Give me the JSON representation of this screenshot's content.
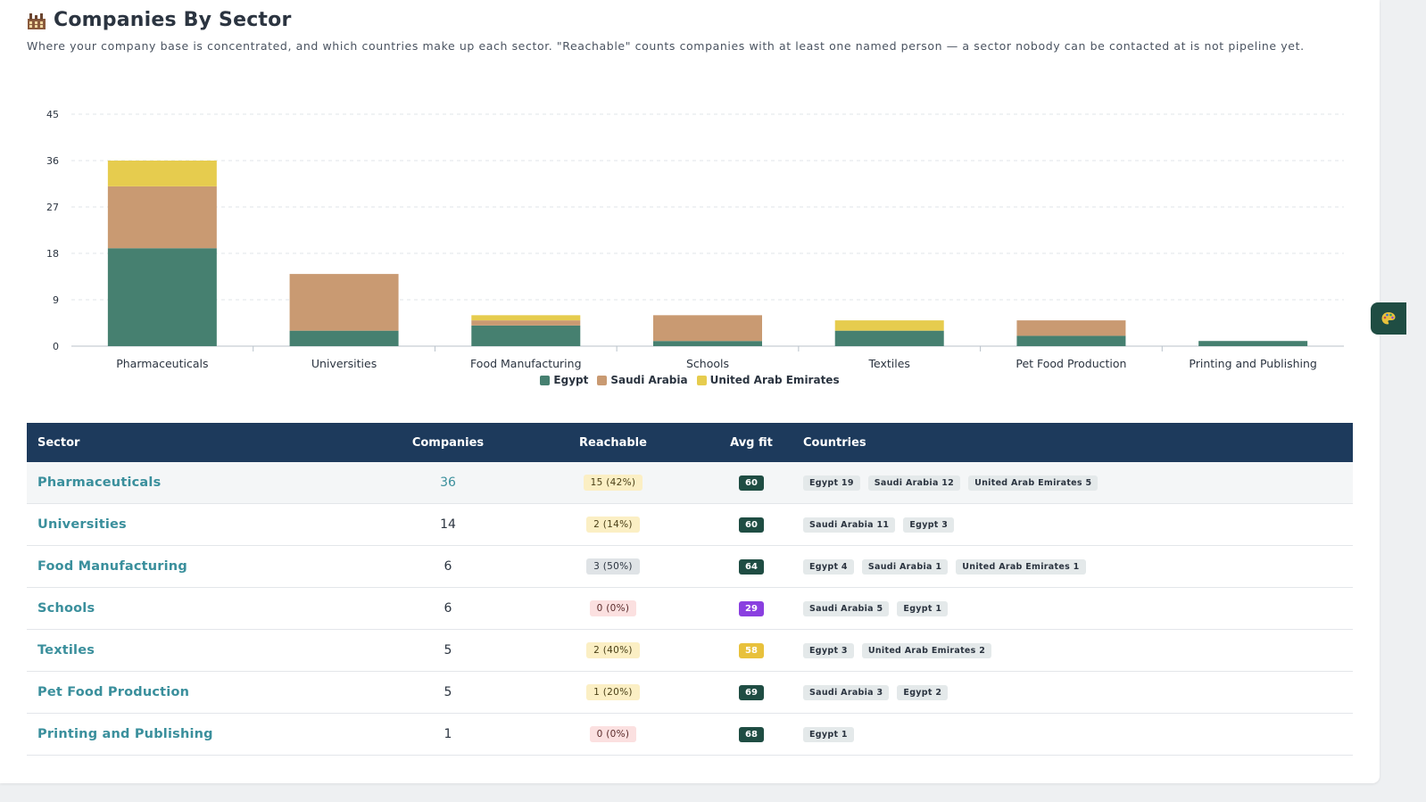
{
  "header": {
    "title": "Companies By Sector",
    "subtitle": "Where your company base is concentrated, and which countries make up each sector. \"Reachable\" counts companies with at least one named person — a sector nobody can be contacted at is not pipeline yet."
  },
  "colors": {
    "egypt": "#468070",
    "saudi": "#c99a72",
    "uae": "#e6cc4e",
    "header_bg": "#1d3a5c",
    "accent": "#3a8f9c"
  },
  "chart_data": {
    "type": "bar",
    "stacked": true,
    "categories": [
      "Pharmaceuticals",
      "Universities",
      "Food Manufacturing",
      "Schools",
      "Textiles",
      "Pet Food Production",
      "Printing and Publishing"
    ],
    "series": [
      {
        "name": "Egypt",
        "color": "#468070",
        "values": [
          19,
          3,
          4,
          1,
          3,
          2,
          1
        ]
      },
      {
        "name": "Saudi Arabia",
        "color": "#c99a72",
        "values": [
          12,
          11,
          1,
          5,
          0,
          3,
          0
        ]
      },
      {
        "name": "United Arab Emirates",
        "color": "#e6cc4e",
        "values": [
          5,
          0,
          1,
          0,
          2,
          0,
          0
        ]
      }
    ],
    "y_ticks": [
      "0",
      "9",
      "18",
      "27",
      "36",
      "45"
    ],
    "ylim": [
      0,
      45
    ],
    "grid": true,
    "legend": "bottom-center"
  },
  "table": {
    "headers": {
      "sector": "Sector",
      "companies": "Companies",
      "reachable": "Reachable",
      "avg_fit": "Avg fit",
      "countries": "Countries"
    },
    "rows": [
      {
        "sector": "Pharmaceuticals",
        "companies": "36",
        "reachable": "15 (42%)",
        "reach_style": "yellow",
        "fit": "60",
        "fit_style": "green",
        "countries": [
          "Egypt 19",
          "Saudi Arabia 12",
          "United Arab Emirates 5"
        ]
      },
      {
        "sector": "Universities",
        "companies": "14",
        "reachable": "2 (14%)",
        "reach_style": "yellow",
        "fit": "60",
        "fit_style": "green",
        "countries": [
          "Saudi Arabia 11",
          "Egypt 3"
        ]
      },
      {
        "sector": "Food Manufacturing",
        "companies": "6",
        "reachable": "3 (50%)",
        "reach_style": "gray",
        "fit": "64",
        "fit_style": "green",
        "countries": [
          "Egypt 4",
          "Saudi Arabia 1",
          "United Arab Emirates 1"
        ]
      },
      {
        "sector": "Schools",
        "companies": "6",
        "reachable": "0 (0%)",
        "reach_style": "red",
        "fit": "29",
        "fit_style": "purple",
        "countries": [
          "Saudi Arabia 5",
          "Egypt 1"
        ]
      },
      {
        "sector": "Textiles",
        "companies": "5",
        "reachable": "2 (40%)",
        "reach_style": "yellow",
        "fit": "58",
        "fit_style": "yellow",
        "countries": [
          "Egypt 3",
          "United Arab Emirates 2"
        ]
      },
      {
        "sector": "Pet Food Production",
        "companies": "5",
        "reachable": "1 (20%)",
        "reach_style": "yellow",
        "fit": "69",
        "fit_style": "green",
        "countries": [
          "Saudi Arabia 3",
          "Egypt 2"
        ]
      },
      {
        "sector": "Printing and Publishing",
        "companies": "1",
        "reachable": "0 (0%)",
        "reach_style": "red",
        "fit": "68",
        "fit_style": "green",
        "countries": [
          "Egypt 1"
        ]
      }
    ]
  },
  "side_tab": {
    "icon": "palette-icon"
  }
}
